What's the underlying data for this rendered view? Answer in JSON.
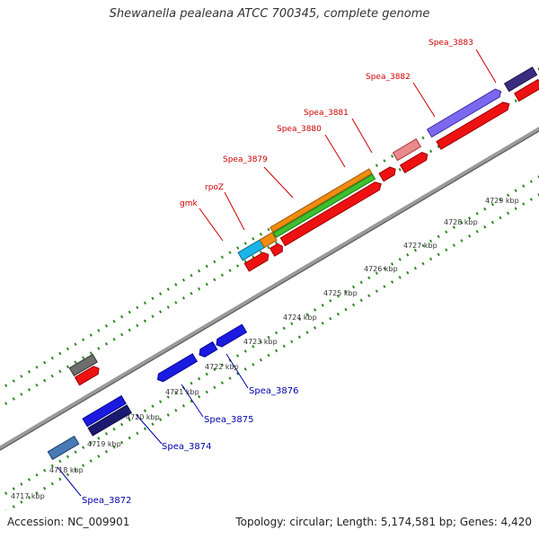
{
  "title": "Shewanella pealeana ATCC 700345, complete genome",
  "footer": {
    "accession": "Accession: NC_009901",
    "summary": "Topology: circular; Length: 5,174,581 bp; Genes: 4,420"
  },
  "scale": {
    "unit": "kbp",
    "ticks": [
      {
        "label": "4717 kbp"
      },
      {
        "label": "4718 kbp"
      },
      {
        "label": "4719 kbp"
      },
      {
        "label": "4720 kbp"
      },
      {
        "label": "4721 kbp"
      },
      {
        "label": "4722 kbp"
      },
      {
        "label": "4723 kbp"
      },
      {
        "label": "4724 kbp"
      },
      {
        "label": "4725 kbp"
      },
      {
        "label": "4726 kbp"
      },
      {
        "label": "4727 kbp"
      },
      {
        "label": "4728 kbp"
      },
      {
        "label": "4729 kbp"
      }
    ]
  },
  "gene_labels_top": [
    {
      "text": "gmk"
    },
    {
      "text": "rpoZ"
    },
    {
      "text": "Spea_3879"
    },
    {
      "text": "Spea_3880"
    },
    {
      "text": "Spea_3881"
    },
    {
      "text": "Spea_3882"
    },
    {
      "text": "Spea_3883"
    }
  ],
  "gene_labels_bottom": [
    {
      "text": "Spea_3872"
    },
    {
      "text": "Spea_3874"
    },
    {
      "text": "Spea_3875"
    },
    {
      "text": "Spea_3876"
    }
  ],
  "colors": {
    "cds_forward": "#ee1111",
    "cds_reverse": "#1a1ae0",
    "top_label": "#cc0000",
    "bottom_label": "#0000aa",
    "backbone": "#9a9a9a",
    "tick_marks": "#2e8b22"
  }
}
